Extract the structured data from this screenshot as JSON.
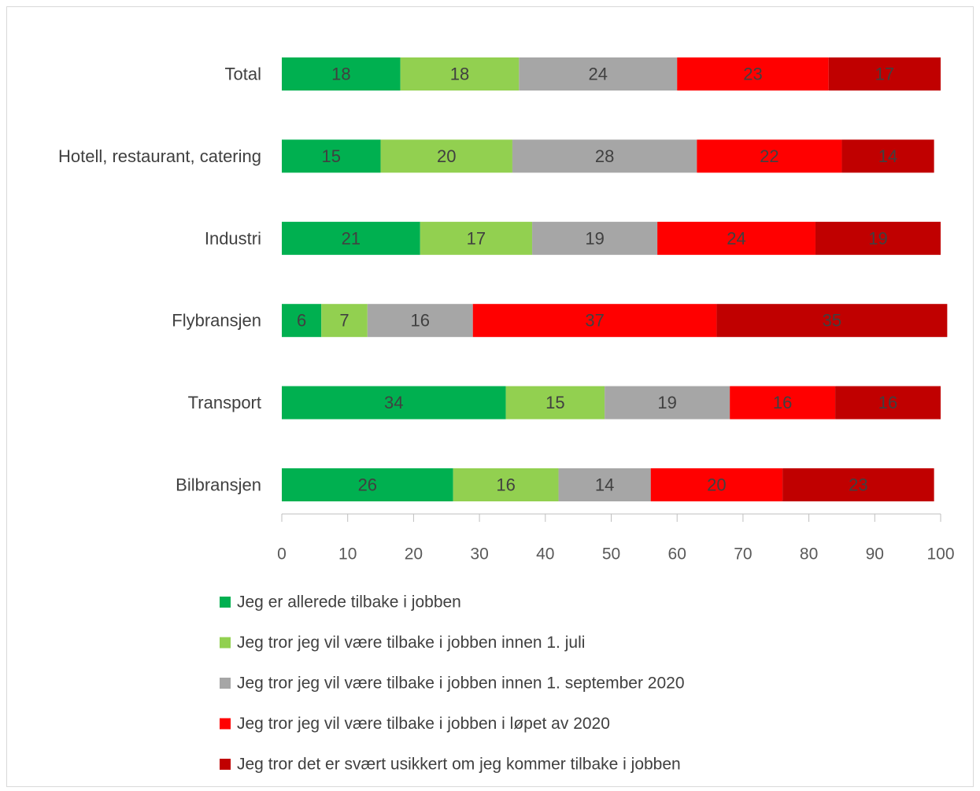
{
  "chart_data": {
    "type": "bar",
    "orientation": "horizontal",
    "stacked": true,
    "title": "",
    "xlabel": "",
    "ylabel": "",
    "xlim": [
      0,
      100
    ],
    "x_ticks": [
      "0",
      "10",
      "20",
      "30",
      "40",
      "50",
      "60",
      "70",
      "80",
      "90",
      "100"
    ],
    "grid": false,
    "legend_position": "bottom",
    "categories": [
      "Total",
      "Hotell, restaurant, catering",
      "Industri",
      "Flybransjen",
      "Transport",
      "Bilbransjen"
    ],
    "series": [
      {
        "name": "Jeg er allerede tilbake i jobben",
        "color": "#00b050",
        "values": [
          18,
          15,
          21,
          6,
          34,
          26
        ]
      },
      {
        "name": "Jeg tror jeg vil være tilbake i jobben innen 1. juli",
        "color": "#92d050",
        "values": [
          18,
          20,
          17,
          7,
          15,
          16
        ]
      },
      {
        "name": "Jeg tror jeg vil være tilbake i jobben innen 1. september 2020",
        "color": "#a6a6a6",
        "values": [
          24,
          28,
          19,
          16,
          19,
          14
        ]
      },
      {
        "name": "Jeg tror jeg vil være tilbake i jobben i løpet av 2020",
        "color": "#ff0000",
        "values": [
          23,
          22,
          24,
          37,
          16,
          20
        ]
      },
      {
        "name": "Jeg tror det er svært usikkert om jeg kommer tilbake i jobben",
        "color": "#c00000",
        "values": [
          17,
          14,
          19,
          35,
          16,
          23
        ]
      }
    ]
  }
}
